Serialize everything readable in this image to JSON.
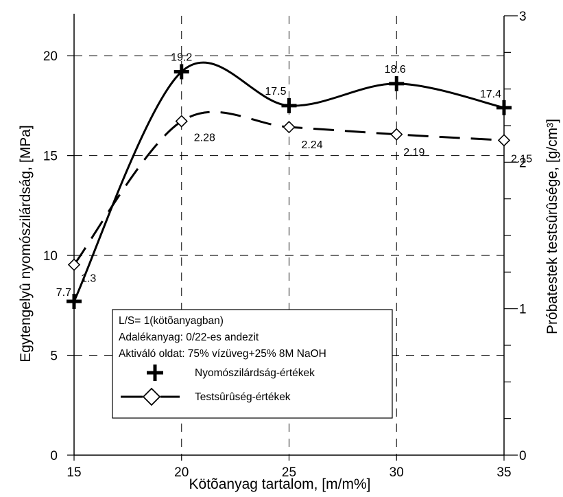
{
  "chart_data": {
    "type": "line",
    "xlabel": "Kötõanyag tartalom, [m/m%]",
    "ylabel_left": "Egytengelyû nyomószilárdság, [MPa]",
    "ylabel_right": "Próbatestek testsûrûsége, [g/cm³]",
    "xlim": [
      15,
      35
    ],
    "ylim_left": [
      0,
      22
    ],
    "ylim_right": [
      0,
      3
    ],
    "x_ticks": [
      "15",
      "20",
      "25",
      "30",
      "35"
    ],
    "y_left_ticks": [
      "0",
      "5",
      "10",
      "15",
      "20"
    ],
    "y_right_ticks": [
      "0",
      "1",
      "2",
      "3"
    ],
    "grid": "dashed",
    "series": [
      {
        "name": "Nyomószilárdság-értékek",
        "axis": "left",
        "x": [
          15,
          20,
          25,
          30,
          35
        ],
        "values": [
          7.7,
          19.2,
          17.5,
          18.6,
          17.4
        ],
        "labels": [
          "7.7",
          "19.2",
          "17.5",
          "18.6",
          "17.4"
        ],
        "style": "solid",
        "marker": "plus",
        "color": "#000000"
      },
      {
        "name": "Testsûrûség-értékek",
        "axis": "right",
        "x": [
          15,
          20,
          25,
          30,
          35
        ],
        "values": [
          1.3,
          2.28,
          2.24,
          2.19,
          2.15
        ],
        "labels": [
          "1.3",
          "2.28",
          "2.24",
          "2.19",
          "2.15"
        ],
        "style": "dashed",
        "marker": "diamond",
        "color": "#000000"
      }
    ],
    "legend": {
      "placement": "bottom-center",
      "lines": [
        "L/S= 1(kötõanyagban)",
        "Adalékanyag: 0/22-es andezit",
        "Aktiváló oldat: 75% vízüveg+25% 8M NaOH"
      ]
    }
  }
}
